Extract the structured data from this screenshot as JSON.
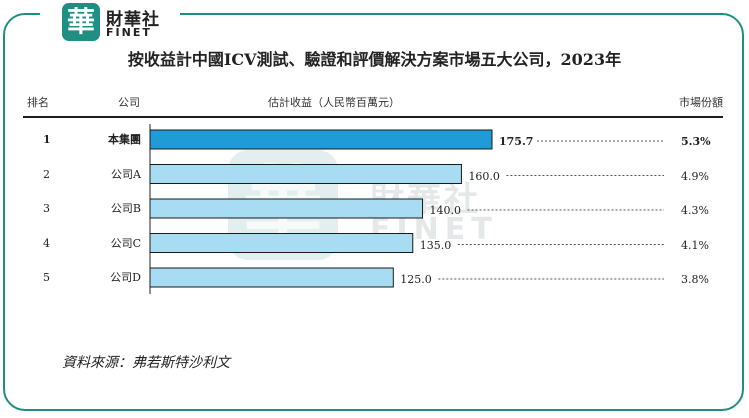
{
  "brand": {
    "badge_char": "華",
    "name_cn": "財華社",
    "name_en": "FINET"
  },
  "title": "按收益計中國ICV測試、驗證和評價解決方案市場五大公司，2023年",
  "headers": {
    "rank": "排名",
    "company": "公司",
    "revenue": "估計收益（人民幣百萬元）",
    "share": "市場份額"
  },
  "chart_data": {
    "type": "bar",
    "orientation": "horizontal",
    "title": "按收益計中國ICV測試、驗證和評價解決方案市場五大公司，2023年",
    "xlabel": "估計收益（人民幣百萬元）",
    "ylabel": "公司",
    "rows": [
      {
        "rank": "1",
        "company": "本集團",
        "value": 175.7,
        "value_label": "175.7",
        "share": "5.3%",
        "highlight": true
      },
      {
        "rank": "2",
        "company": "公司A",
        "value": 160.0,
        "value_label": "160.0",
        "share": "4.9%",
        "highlight": false
      },
      {
        "rank": "3",
        "company": "公司B",
        "value": 140.0,
        "value_label": "140.0",
        "share": "4.3%",
        "highlight": false
      },
      {
        "rank": "4",
        "company": "公司C",
        "value": 135.0,
        "value_label": "135.0",
        "share": "4.1%",
        "highlight": false
      },
      {
        "rank": "5",
        "company": "公司D",
        "value": 125.0,
        "value_label": "125.0",
        "share": "3.8%",
        "highlight": false
      }
    ],
    "colors": {
      "highlight": "#1f9bd7",
      "bar": "#a7dcf2",
      "frame": "#1f8e83"
    }
  },
  "source": "資料來源：弗若斯特沙利文"
}
